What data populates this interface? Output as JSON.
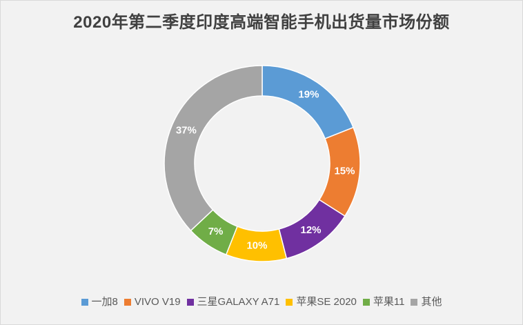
{
  "chart_data": {
    "type": "pie",
    "variant": "donut",
    "title": "2020年第二季度印度高端智能手机出货量市场份额",
    "categories": [
      "一加8",
      "VIVO V19",
      "三星GALAXY A71",
      "苹果SE 2020",
      "苹果11",
      "其他"
    ],
    "values": [
      19,
      15,
      12,
      10,
      7,
      37
    ],
    "data_labels": [
      "19%",
      "15%",
      "12%",
      "10%",
      "7%",
      "37%"
    ],
    "colors": [
      "#5B9BD5",
      "#ED7D31",
      "#7030A0",
      "#FFC000",
      "#70AD47",
      "#A5A5A5"
    ],
    "legend_position": "bottom"
  }
}
